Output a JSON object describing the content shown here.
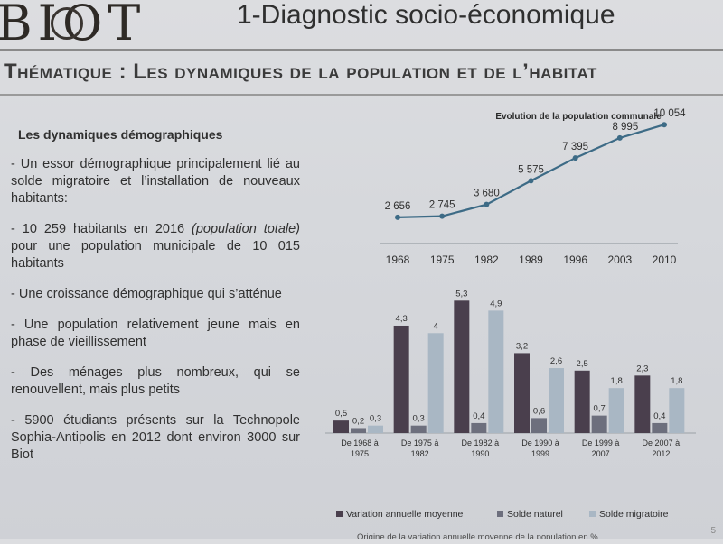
{
  "header": {
    "logo": "BIOT",
    "title": "1-Diagnostic socio-économique"
  },
  "theme_title": "Thématique : Les dynamiques de la population et de l’habitat",
  "left": {
    "section_title": "Les dynamiques démographiques",
    "bullets": [
      "- Un essor démographique principalement lié au solde migratoire et l’installation de nouveaux habitants:",
      "- 10 259 habitants en 2016",
      "(population totale)",
      "pour une population municipale de 10 015 habitants",
      "- Une croissance démographique qui s’atténue",
      "- Une population relativement jeune mais en phase de vieillissement",
      "- Des ménages plus nombreux, qui se renouvellent, mais plus petits",
      "- 5900 étudiants présents sur la Technopole Sophia-Antipolis en 2012 dont environ 3000 sur Biot"
    ]
  },
  "chart_data": [
    {
      "type": "line",
      "title": "Evolution de la population communale",
      "x": [
        "1968",
        "1975",
        "1982",
        "1989",
        "1996",
        "2003",
        "2010"
      ],
      "series": [
        {
          "values": [
            2656,
            2745,
            3680,
            5575,
            7395,
            8995,
            10054
          ]
        }
      ],
      "value_labels": [
        "2 656",
        "2 745",
        "3 680",
        "5 575",
        "7 395",
        "8 995",
        "10 054"
      ],
      "ylim": [
        2000,
        10500
      ],
      "grid": false,
      "color": "#3d6b86"
    },
    {
      "type": "bar",
      "categories": [
        [
          "De 1968 à",
          "1975"
        ],
        [
          "De 1975 à",
          "1982"
        ],
        [
          "De 1982 à",
          "1990"
        ],
        [
          "De 1990 à",
          "1999"
        ],
        [
          "De 1999 à",
          "2007"
        ],
        [
          "De 2007 à",
          "2012"
        ]
      ],
      "series": [
        {
          "name": "Variation annuelle moyenne",
          "values": [
            0.5,
            4.3,
            5.3,
            3.2,
            2.5,
            2.3
          ],
          "labels": [
            "0,5",
            "4,3",
            "5,3",
            "3,2",
            "2,5",
            "2,3"
          ],
          "color": "#4a3f4d"
        },
        {
          "name": "Solde naturel",
          "values": [
            0.2,
            0.3,
            0.4,
            0.6,
            0.7,
            0.4
          ],
          "labels": [
            "0,2",
            "0,3",
            "0,4",
            "0,6",
            "0,7",
            "0,4"
          ],
          "color": "#6d6f7d"
        },
        {
          "name": "Solde migratoire",
          "values": [
            0.3,
            4,
            4.9,
            2.6,
            1.8,
            1.8
          ],
          "labels": [
            "0,3",
            "4",
            "4,9",
            "2,6",
            "1,8",
            "1,8"
          ],
          "color": "#a9b7c4"
        }
      ],
      "ylim": [
        0,
        5.6
      ],
      "grid": false,
      "legend": "bottom",
      "caption": "Origine de la variation annuelle moyenne de la population en %"
    }
  ],
  "page_number": "5"
}
